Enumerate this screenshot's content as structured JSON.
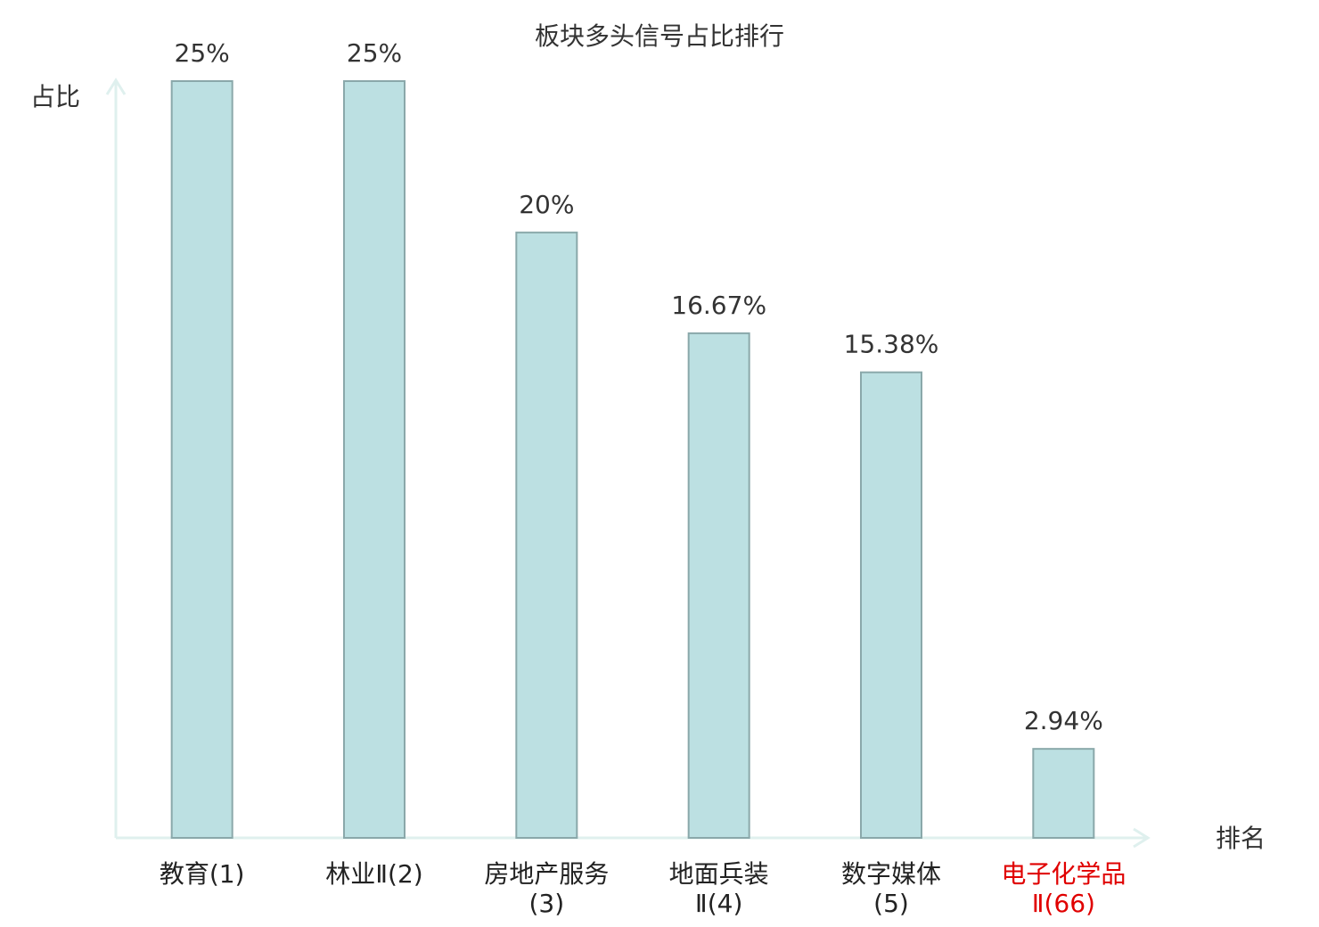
{
  "chart_data": {
    "type": "bar",
    "title": "板块多头信号占比排行",
    "y_label": "占比",
    "x_label": "排名",
    "categories": [
      "教育(1)",
      "林业Ⅱ(2)",
      "房地产服务(3)",
      "地面兵装Ⅱ(4)",
      "数字媒体(5)",
      "电子化学品Ⅱ(66)"
    ],
    "values": [
      25,
      25,
      20,
      16.67,
      15.38,
      2.94
    ],
    "value_labels": [
      "25%",
      "25%",
      "20%",
      "16.67%",
      "15.38%",
      "2.94%"
    ],
    "color": "#bce0e2",
    "label_colors": [
      "#222222",
      "#222222",
      "#222222",
      "#222222",
      "#222222",
      "#e00000"
    ],
    "ylim": [
      0,
      25
    ]
  }
}
